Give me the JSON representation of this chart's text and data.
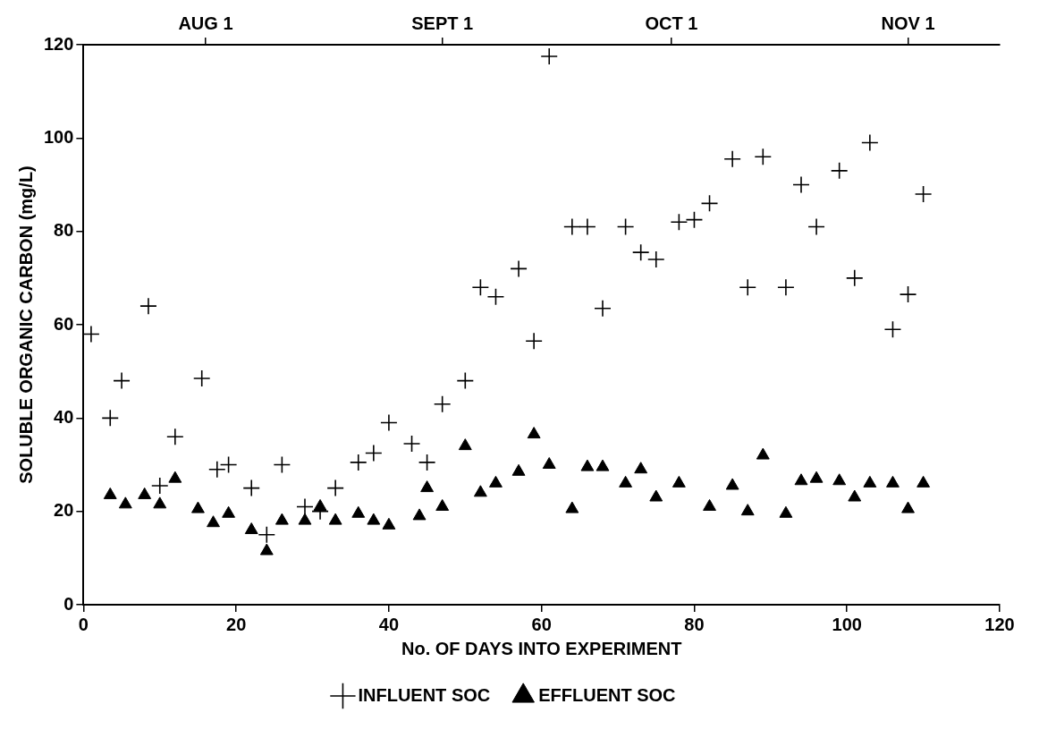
{
  "chart_data": {
    "type": "scatter",
    "xlabel": "No. OF DAYS INTO EXPERIMENT",
    "ylabel": "SOLUBLE ORGANIC CARBON (mg/L)",
    "xlim": [
      0,
      120
    ],
    "xticks": [
      0,
      20,
      40,
      60,
      80,
      100,
      120
    ],
    "ylim": [
      0,
      120
    ],
    "yticks": [
      0,
      20,
      40,
      60,
      80,
      100,
      120
    ],
    "x2lim": [
      "--07-16",
      "--11-13"
    ],
    "x2ticks": [
      {
        "value": "--08-01",
        "label": "AUG 1"
      },
      {
        "value": "--09-01",
        "label": "SEPT 1"
      },
      {
        "value": "--10-01",
        "label": "OCT 1"
      },
      {
        "value": "--11-01",
        "label": "NOV 1"
      }
    ],
    "grid": false,
    "legend": "bottom",
    "series": [
      {
        "name": "INFLUENT SOC",
        "color": "#000000",
        "marker": "cross",
        "x": [
          1,
          3.5,
          5,
          8.5,
          10,
          12,
          15.5,
          17.5,
          19,
          22,
          24,
          26,
          29,
          31,
          33,
          36,
          38,
          40,
          43,
          45,
          47,
          50,
          52,
          54,
          57,
          59,
          61,
          64,
          66,
          68,
          71,
          73,
          75,
          78,
          80,
          82,
          85,
          87,
          89,
          92,
          94,
          96,
          99,
          101,
          103,
          106,
          108,
          110
        ],
        "values": [
          58,
          40,
          48,
          64,
          25.5,
          36,
          48.5,
          29,
          30,
          25,
          15,
          30,
          21,
          20,
          25,
          30.5,
          32.5,
          39,
          34.5,
          30.5,
          43,
          48,
          68,
          66,
          72,
          56.5,
          117.5,
          81,
          81,
          63.5,
          81,
          75.5,
          74,
          82,
          82.5,
          86,
          95.5,
          68,
          96,
          68,
          90,
          81,
          93,
          70,
          99,
          59,
          66.5,
          88
        ]
      },
      {
        "name": "EFFLUENT SOC",
        "color": "#000000",
        "marker": "triangle",
        "x": [
          3.5,
          5.5,
          8,
          10,
          12,
          15,
          17,
          19,
          22,
          24,
          26,
          29,
          31,
          33,
          36,
          38,
          40,
          44,
          45,
          47,
          50,
          52,
          54,
          57,
          59,
          61,
          64,
          66,
          68,
          71,
          73,
          75,
          78,
          82,
          85,
          87,
          89,
          92,
          94,
          96,
          99,
          101,
          103,
          106,
          108,
          110
        ],
        "values": [
          23.5,
          21.5,
          23.5,
          21.5,
          27,
          20.5,
          17.5,
          19.5,
          16,
          11.5,
          18,
          18,
          21,
          18,
          19.5,
          18,
          17,
          19,
          25,
          21,
          34,
          24,
          26,
          28.5,
          36.5,
          30,
          20.5,
          29.5,
          29.5,
          26,
          29,
          23,
          26,
          21,
          25.5,
          20,
          32,
          19.5,
          26.5,
          27,
          26.5,
          23,
          26,
          26,
          20.5,
          26
        ]
      }
    ]
  }
}
